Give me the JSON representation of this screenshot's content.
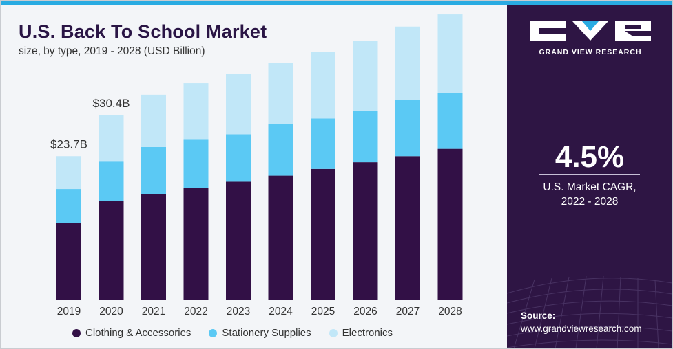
{
  "colors": {
    "top_bar": "#29abe2",
    "side_panel": "#2e1544",
    "clothing": "#321046",
    "stationery": "#5bc9f4",
    "electronics": "#c1e7f8",
    "title": "#2a1545"
  },
  "header": {
    "title": "U.S. Back To School Market",
    "subtitle": "size, by type, 2019 - 2028 (USD Billion)"
  },
  "chart_data": {
    "type": "bar",
    "stacked": true,
    "title": "U.S. Back To School Market",
    "subtitle": "size, by type, 2019 - 2028 (USD Billion)",
    "xlabel": "",
    "ylabel": "USD Billion",
    "ylim": [
      0,
      45
    ],
    "grid": false,
    "legend_position": "bottom",
    "categories": [
      "2019",
      "2020",
      "2021",
      "2022",
      "2023",
      "2024",
      "2025",
      "2026",
      "2027",
      "2028"
    ],
    "series": [
      {
        "name": "Clothing & Accessories",
        "values": [
          12.7,
          16.3,
          17.5,
          18.5,
          19.5,
          20.5,
          21.6,
          22.7,
          23.7,
          24.9
        ]
      },
      {
        "name": "Stationery Supplies",
        "values": [
          5.6,
          6.5,
          7.7,
          7.9,
          7.8,
          8.5,
          8.3,
          8.5,
          9.2,
          9.2
        ]
      },
      {
        "name": "Electronics",
        "values": [
          5.4,
          7.6,
          8.6,
          9.3,
          9.9,
          10.0,
          10.9,
          11.4,
          12.1,
          12.9
        ]
      }
    ],
    "annotations": [
      {
        "category": "2019",
        "text": "$23.7B"
      },
      {
        "category": "2020",
        "text": "$30.4B"
      }
    ]
  },
  "side": {
    "logo_text": "GRAND VIEW RESEARCH",
    "cagr_value": "4.5%",
    "cagr_label_line1": "U.S. Market CAGR,",
    "cagr_label_line2": "2022 - 2028",
    "source_label": "Source:",
    "source_url": "www.grandviewresearch.com"
  }
}
